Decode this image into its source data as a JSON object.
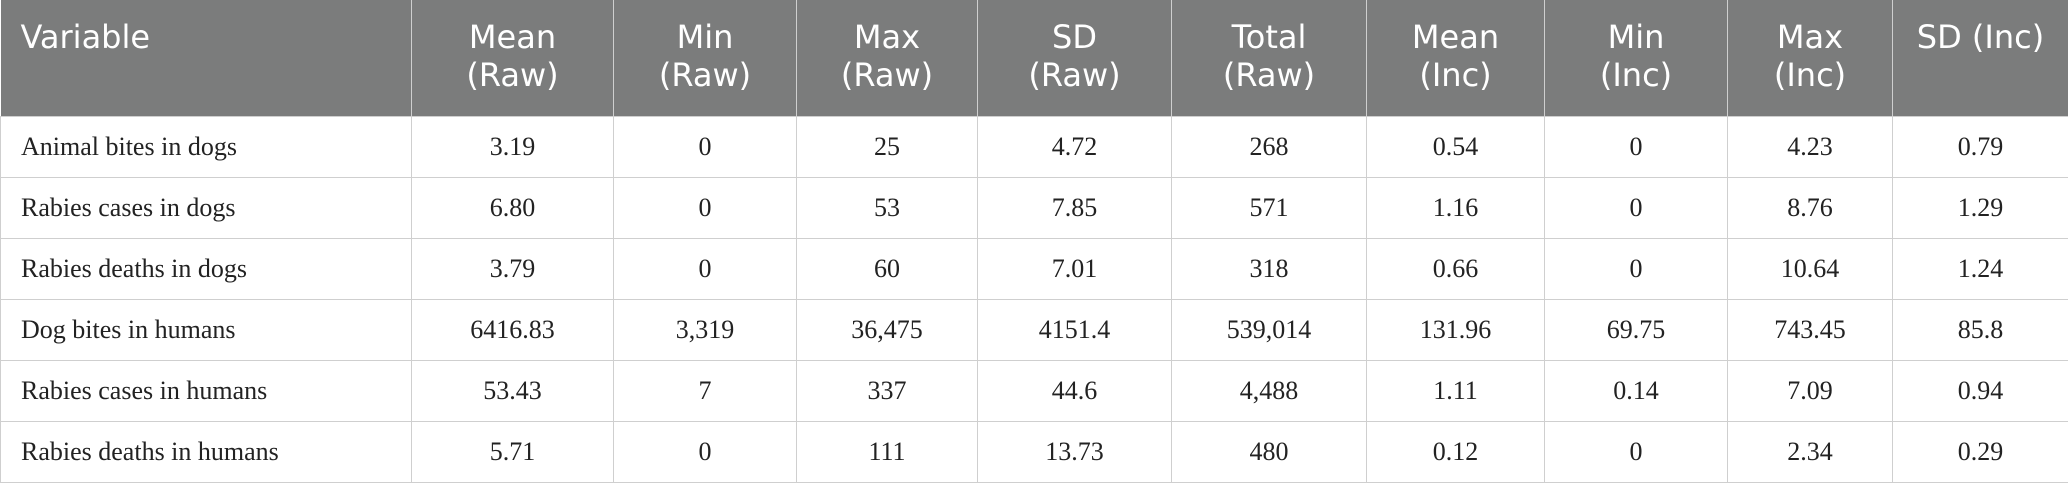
{
  "table": {
    "columns": [
      [
        "Variable"
      ],
      [
        "Mean",
        "(Raw)"
      ],
      [
        "Min",
        "(Raw)"
      ],
      [
        "Max",
        "(Raw)"
      ],
      [
        "SD",
        "(Raw)"
      ],
      [
        "Total",
        "(Raw)"
      ],
      [
        "Mean",
        "(Inc)"
      ],
      [
        "Min",
        "(Inc)"
      ],
      [
        "Max",
        "(Inc)"
      ],
      [
        "SD (Inc)"
      ]
    ],
    "rows": [
      [
        "Animal bites in dogs",
        "3.19",
        "0",
        "25",
        "4.72",
        "268",
        "0.54",
        "0",
        "4.23",
        "0.79"
      ],
      [
        "Rabies cases in dogs",
        "6.80",
        "0",
        "53",
        "7.85",
        "571",
        "1.16",
        "0",
        "8.76",
        "1.29"
      ],
      [
        "Rabies deaths in dogs",
        "3.79",
        "0",
        "60",
        "7.01",
        "318",
        "0.66",
        "0",
        "10.64",
        "1.24"
      ],
      [
        "Dog bites in humans",
        "6416.83",
        "3,319",
        "36,475",
        "4151.4",
        "539,014",
        "131.96",
        "69.75",
        "743.45",
        "85.8"
      ],
      [
        "Rabies cases in humans",
        "53.43",
        "7",
        "337",
        "44.6",
        "4,488",
        "1.11",
        "0.14",
        "7.09",
        "0.94"
      ],
      [
        "Rabies deaths in humans",
        "5.71",
        "0",
        "111",
        "13.73",
        "480",
        "0.12",
        "0",
        "2.34",
        "0.29"
      ]
    ]
  }
}
